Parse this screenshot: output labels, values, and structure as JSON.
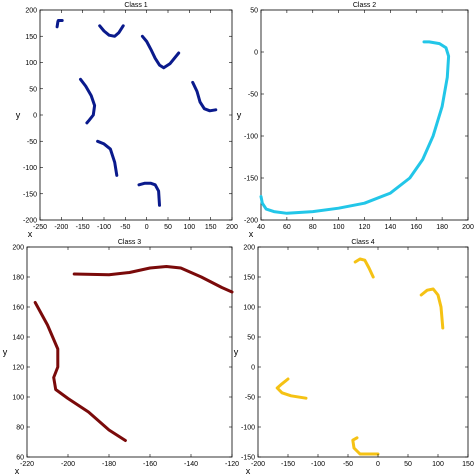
{
  "chart_data": [
    {
      "type": "line",
      "title": "Class 1",
      "xlabel": "x",
      "ylabel": "y",
      "xlim": [
        -250,
        200
      ],
      "ylim": [
        -200,
        200
      ],
      "xticks": [
        -250,
        -200,
        -150,
        -100,
        -50,
        0,
        50,
        100,
        150,
        200
      ],
      "yticks": [
        -200,
        -150,
        -100,
        -50,
        0,
        50,
        100,
        150,
        200
      ],
      "color": "#0a1a8c",
      "grid": false,
      "legend": "none",
      "series": [
        {
          "x": [
            -210,
            -208,
            -207,
            -203,
            -198
          ],
          "y": [
            168,
            178,
            180,
            180,
            180
          ]
        },
        {
          "x": [
            -110,
            -100,
            -88,
            -75,
            -65,
            -55
          ],
          "y": [
            170,
            160,
            152,
            150,
            157,
            170
          ]
        },
        {
          "x": [
            -10,
            0,
            10,
            20,
            30,
            40,
            55,
            75
          ],
          "y": [
            150,
            140,
            125,
            108,
            95,
            90,
            98,
            118
          ]
        },
        {
          "x": [
            -155,
            -143,
            -130,
            -122,
            -125,
            -135,
            -140
          ],
          "y": [
            68,
            55,
            37,
            18,
            0,
            -10,
            -15
          ]
        },
        {
          "x": [
            -115,
            -100,
            -85,
            -75,
            -70
          ],
          "y": [
            -50,
            -55,
            -65,
            -90,
            -115
          ]
        },
        {
          "x": [
            -18,
            -5,
            10,
            20,
            28,
            30
          ],
          "y": [
            -133,
            -130,
            -130,
            -133,
            -145,
            -172
          ]
        },
        {
          "x": [
            108,
            118,
            125,
            135,
            148,
            162
          ],
          "y": [
            62,
            45,
            25,
            12,
            8,
            10
          ]
        }
      ]
    },
    {
      "type": "line",
      "title": "Class 2",
      "xlabel": "x",
      "ylabel": "y",
      "xlim": [
        40,
        200
      ],
      "ylim": [
        -200,
        50
      ],
      "xticks": [
        40,
        60,
        80,
        100,
        120,
        140,
        160,
        180,
        200
      ],
      "yticks": [
        -200,
        -150,
        -100,
        -50,
        0,
        50
      ],
      "color": "#22c6e8",
      "grid": false,
      "legend": "none",
      "series": [
        {
          "x": [
            40,
            41,
            44,
            50,
            60,
            80,
            100,
            120,
            140,
            155,
            165,
            173,
            180,
            184,
            185,
            183,
            178,
            170,
            166
          ],
          "y": [
            -172,
            -180,
            -187,
            -190,
            -192,
            -190,
            -186,
            -180,
            -168,
            -150,
            -128,
            -100,
            -65,
            -30,
            -5,
            5,
            10,
            12,
            12
          ]
        }
      ]
    },
    {
      "type": "line",
      "title": "Class 3",
      "xlabel": "x",
      "ylabel": "y",
      "xlim": [
        -220,
        -120
      ],
      "ylim": [
        60,
        200
      ],
      "xticks": [
        -220,
        -200,
        -180,
        -160,
        -140,
        -120
      ],
      "yticks": [
        60,
        80,
        100,
        120,
        140,
        160,
        180,
        200
      ],
      "color": "#7a0a0a",
      "grid": false,
      "legend": "none",
      "series": [
        {
          "x": [
            -197,
            -180,
            -170,
            -160,
            -152,
            -145,
            -135,
            -125,
            -120
          ],
          "y": [
            182,
            181.5,
            183,
            186,
            187,
            186,
            180,
            173,
            170
          ]
        },
        {
          "x": [
            -216,
            -210,
            -205,
            -205,
            -207,
            -206,
            -200,
            -190,
            -180,
            -172
          ],
          "y": [
            163,
            148,
            132,
            120,
            113,
            105,
            99,
            90,
            78,
            71
          ]
        }
      ]
    },
    {
      "type": "line",
      "title": "Class 4",
      "xlabel": "x",
      "ylabel": "y",
      "xlim": [
        -200,
        150
      ],
      "ylim": [
        -150,
        200
      ],
      "xticks": [
        -200,
        -150,
        -100,
        -50,
        0,
        50,
        100,
        150
      ],
      "yticks": [
        -150,
        -100,
        -50,
        0,
        50,
        100,
        150,
        200
      ],
      "color": "#f5c214",
      "grid": false,
      "legend": "none",
      "series": [
        {
          "x": [
            -38,
            -30,
            -22,
            -15,
            -8
          ],
          "y": [
            175,
            180,
            178,
            165,
            150
          ]
        },
        {
          "x": [
            72,
            82,
            92,
            100,
            105,
            108
          ],
          "y": [
            120,
            128,
            130,
            120,
            100,
            65
          ]
        },
        {
          "x": [
            -150,
            -160,
            -168,
            -160,
            -145,
            -120
          ],
          "y": [
            -20,
            -28,
            -35,
            -43,
            -48,
            -52
          ]
        },
        {
          "x": [
            -35,
            -42,
            -40,
            -30,
            -10,
            0
          ],
          "y": [
            -118,
            -122,
            -135,
            -145,
            -145,
            -145
          ]
        }
      ]
    }
  ]
}
